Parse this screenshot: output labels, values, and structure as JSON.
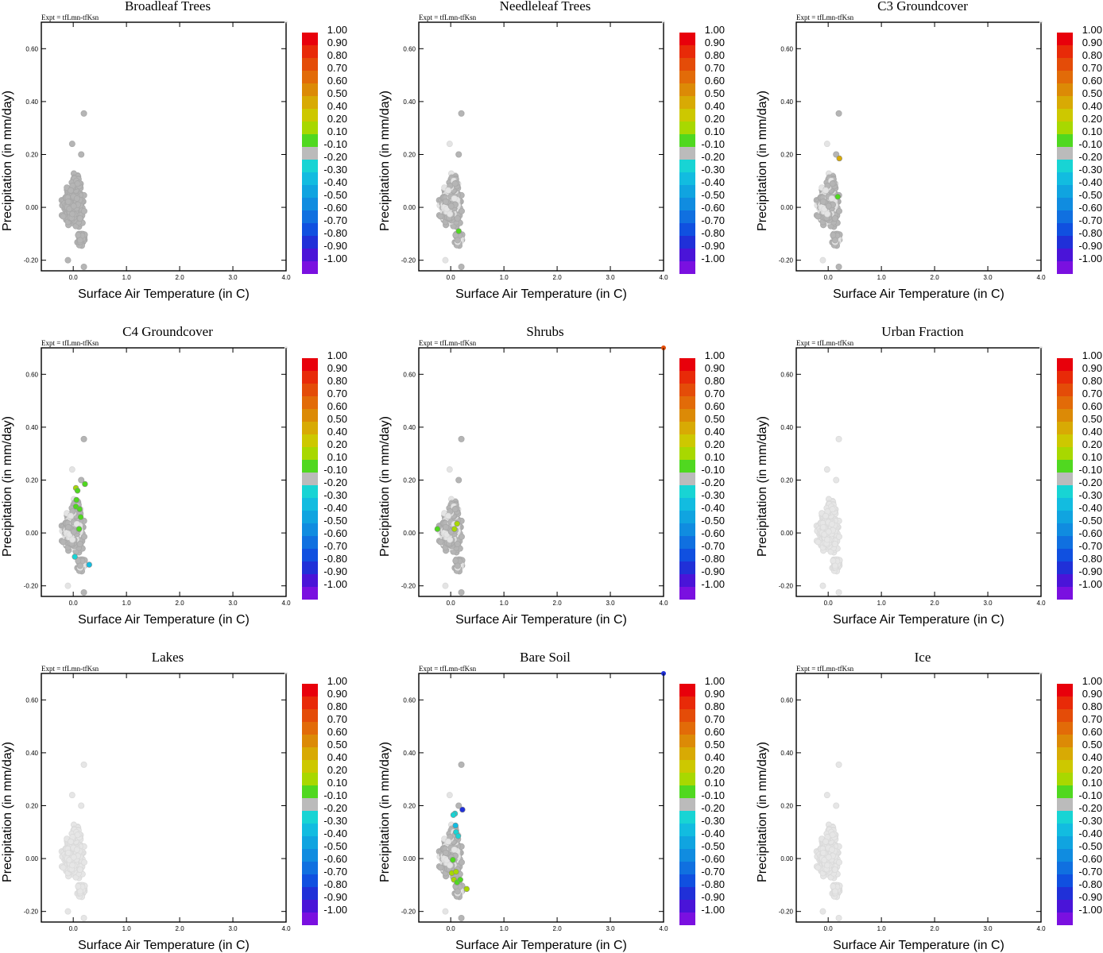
{
  "figure": {
    "experiment_label": "Expt = tfLmn-tfKsn",
    "xlabel": "Surface Air Temperature (in C)",
    "ylabel": "Precipitation (in mm/day)"
  },
  "colorbar": {
    "labels": [
      "1.00",
      "0.90",
      "0.80",
      "0.70",
      "0.60",
      "0.50",
      "0.40",
      "0.20",
      "0.10",
      "-0.10",
      "-0.20",
      "-0.30",
      "-0.40",
      "-0.50",
      "-0.60",
      "-0.70",
      "-0.80",
      "-0.90",
      "-1.00"
    ],
    "colors": [
      "#e8000b",
      "#e82a08",
      "#e44c08",
      "#e26b08",
      "#dc8a06",
      "#d8aa04",
      "#cdc800",
      "#a8d800",
      "#50d820",
      "#bbbbbb",
      "#18d4d4",
      "#12bce0",
      "#10a4e0",
      "#108ce0",
      "#1070e0",
      "#1050e0",
      "#2030d8",
      "#4a14d8",
      "#7a10e0"
    ]
  },
  "chart_data": [
    {
      "type": "scatter",
      "title": "Broadleaf Trees",
      "xlim": [
        -0.6,
        4.0
      ],
      "ylim": [
        -0.24,
        0.7
      ],
      "xticks": [
        "0.0",
        "1.0",
        "2.0",
        "3.0",
        "4.0"
      ],
      "yticks": [
        "-0.20",
        "0.00",
        "0.20",
        "0.40",
        "0.60"
      ],
      "xtick_values": [
        0,
        1,
        2,
        3,
        4
      ],
      "ytick_values": [
        -0.2,
        0,
        0.2,
        0.4,
        0.6
      ],
      "background_cloud": "gray",
      "highlighted_points": [],
      "edge_point": null
    },
    {
      "type": "scatter",
      "title": "Needleleaf Trees",
      "xlim": [
        -0.6,
        4.0
      ],
      "ylim": [
        -0.24,
        0.7
      ],
      "xticks": [
        "0.0",
        "1.0",
        "2.0",
        "3.0",
        "4.0"
      ],
      "yticks": [
        "-0.20",
        "0.00",
        "0.20",
        "0.40",
        "0.60"
      ],
      "xtick_values": [
        0,
        1,
        2,
        3,
        4
      ],
      "ytick_values": [
        -0.2,
        0,
        0.2,
        0.4,
        0.6
      ],
      "background_cloud": "mixed",
      "highlighted_points": [
        {
          "x": 0.15,
          "y": -0.09,
          "color": "#50d820"
        }
      ],
      "edge_point": null
    },
    {
      "type": "scatter",
      "title": "C3 Groundcover",
      "xlim": [
        -0.6,
        4.0
      ],
      "ylim": [
        -0.24,
        0.7
      ],
      "xticks": [
        "0.0",
        "1.0",
        "2.0",
        "3.0",
        "4.0"
      ],
      "yticks": [
        "-0.20",
        "0.00",
        "0.20",
        "0.40",
        "0.60"
      ],
      "xtick_values": [
        0,
        1,
        2,
        3,
        4
      ],
      "ytick_values": [
        -0.2,
        0,
        0.2,
        0.4,
        0.6
      ],
      "background_cloud": "mixed",
      "highlighted_points": [
        {
          "x": 0.21,
          "y": 0.185,
          "color": "#d8aa04"
        },
        {
          "x": 0.18,
          "y": 0.04,
          "color": "#50d820"
        }
      ],
      "edge_point": null
    },
    {
      "type": "scatter",
      "title": "C4 Groundcover",
      "xlim": [
        -0.6,
        4.0
      ],
      "ylim": [
        -0.24,
        0.7
      ],
      "xticks": [
        "0.0",
        "1.0",
        "2.0",
        "3.0",
        "4.0"
      ],
      "yticks": [
        "-0.20",
        "0.00",
        "0.20",
        "0.40",
        "0.60"
      ],
      "xtick_values": [
        0,
        1,
        2,
        3,
        4
      ],
      "ytick_values": [
        -0.2,
        0,
        0.2,
        0.4,
        0.6
      ],
      "background_cloud": "mixed",
      "highlighted_points": [
        {
          "x": 0.22,
          "y": 0.185,
          "color": "#50d820"
        },
        {
          "x": 0.05,
          "y": 0.17,
          "color": "#a8d800"
        },
        {
          "x": 0.08,
          "y": 0.16,
          "color": "#50d820"
        },
        {
          "x": 0.06,
          "y": 0.125,
          "color": "#50d820"
        },
        {
          "x": 0.05,
          "y": 0.1,
          "color": "#50d820"
        },
        {
          "x": 0.12,
          "y": 0.09,
          "color": "#50d820"
        },
        {
          "x": 0.14,
          "y": 0.06,
          "color": "#50d820"
        },
        {
          "x": 0.11,
          "y": 0.015,
          "color": "#50d820"
        },
        {
          "x": 0.03,
          "y": -0.09,
          "color": "#18d4d4"
        },
        {
          "x": 0.3,
          "y": -0.12,
          "color": "#12bce0"
        }
      ],
      "edge_point": null
    },
    {
      "type": "scatter",
      "title": "Shrubs",
      "xlim": [
        -0.6,
        4.0
      ],
      "ylim": [
        -0.24,
        0.7
      ],
      "xticks": [
        "0.0",
        "1.0",
        "2.0",
        "3.0",
        "4.0"
      ],
      "yticks": [
        "-0.20",
        "0.00",
        "0.20",
        "0.40",
        "0.60"
      ],
      "xtick_values": [
        0,
        1,
        2,
        3,
        4
      ],
      "ytick_values": [
        -0.2,
        0,
        0.2,
        0.4,
        0.6
      ],
      "background_cloud": "mixed",
      "highlighted_points": [
        {
          "x": -0.25,
          "y": 0.015,
          "color": "#50d820"
        },
        {
          "x": 0.12,
          "y": 0.035,
          "color": "#a8d800"
        },
        {
          "x": 0.07,
          "y": 0.015,
          "color": "#a8d800"
        }
      ],
      "edge_point": {
        "x": 4.0,
        "y": 0.7,
        "color": "#e44c08"
      }
    },
    {
      "type": "scatter",
      "title": "Urban Fraction",
      "xlim": [
        -0.6,
        4.0
      ],
      "ylim": [
        -0.24,
        0.7
      ],
      "xticks": [
        "0.0",
        "1.0",
        "2.0",
        "3.0",
        "4.0"
      ],
      "yticks": [
        "-0.20",
        "0.00",
        "0.20",
        "0.40",
        "0.60"
      ],
      "xtick_values": [
        0,
        1,
        2,
        3,
        4
      ],
      "ytick_values": [
        -0.2,
        0,
        0.2,
        0.4,
        0.6
      ],
      "background_cloud": "light",
      "highlighted_points": [],
      "edge_point": null
    },
    {
      "type": "scatter",
      "title": "Lakes",
      "xlim": [
        -0.6,
        4.0
      ],
      "ylim": [
        -0.24,
        0.7
      ],
      "xticks": [
        "0.0",
        "1.0",
        "2.0",
        "3.0",
        "4.0"
      ],
      "yticks": [
        "-0.20",
        "0.00",
        "0.20",
        "0.40",
        "0.60"
      ],
      "xtick_values": [
        0,
        1,
        2,
        3,
        4
      ],
      "ytick_values": [
        -0.2,
        0,
        0.2,
        0.4,
        0.6
      ],
      "background_cloud": "light",
      "highlighted_points": [],
      "edge_point": null
    },
    {
      "type": "scatter",
      "title": "Bare Soil",
      "xlim": [
        -0.6,
        4.0
      ],
      "ylim": [
        -0.24,
        0.7
      ],
      "xticks": [
        "0.0",
        "1.0",
        "2.0",
        "3.0",
        "4.0"
      ],
      "yticks": [
        "-0.20",
        "0.00",
        "0.20",
        "0.40",
        "0.60"
      ],
      "xtick_values": [
        0,
        1,
        2,
        3,
        4
      ],
      "ytick_values": [
        -0.2,
        0,
        0.2,
        0.4,
        0.6
      ],
      "background_cloud": "mixed",
      "highlighted_points": [
        {
          "x": 0.22,
          "y": 0.185,
          "color": "#2030d8"
        },
        {
          "x": 0.08,
          "y": 0.17,
          "color": "#18d4d4"
        },
        {
          "x": 0.05,
          "y": 0.165,
          "color": "#18d4d4"
        },
        {
          "x": 0.09,
          "y": 0.125,
          "color": "#12bce0"
        },
        {
          "x": 0.1,
          "y": 0.1,
          "color": "#18d4d4"
        },
        {
          "x": 0.14,
          "y": 0.085,
          "color": "#18d4d4"
        },
        {
          "x": 0.04,
          "y": -0.005,
          "color": "#50d820"
        },
        {
          "x": 0.02,
          "y": -0.055,
          "color": "#a8d800"
        },
        {
          "x": 0.1,
          "y": -0.05,
          "color": "#a8d800"
        },
        {
          "x": 0.06,
          "y": -0.08,
          "color": "#a8d800"
        },
        {
          "x": 0.12,
          "y": -0.09,
          "color": "#50d820"
        },
        {
          "x": 0.18,
          "y": -0.08,
          "color": "#50d820"
        },
        {
          "x": 0.3,
          "y": -0.115,
          "color": "#a8d800"
        }
      ],
      "edge_point": {
        "x": 4.0,
        "y": 0.7,
        "color": "#2030d8"
      }
    },
    {
      "type": "scatter",
      "title": "Ice",
      "xlim": [
        -0.6,
        4.0
      ],
      "ylim": [
        -0.24,
        0.7
      ],
      "xticks": [
        "0.0",
        "1.0",
        "2.0",
        "3.0",
        "4.0"
      ],
      "yticks": [
        "-0.20",
        "0.00",
        "0.20",
        "0.40",
        "0.60"
      ],
      "xtick_values": [
        0,
        1,
        2,
        3,
        4
      ],
      "ytick_values": [
        -0.2,
        0,
        0.2,
        0.4,
        0.6
      ],
      "background_cloud": "light",
      "highlighted_points": [],
      "edge_point": null
    }
  ]
}
